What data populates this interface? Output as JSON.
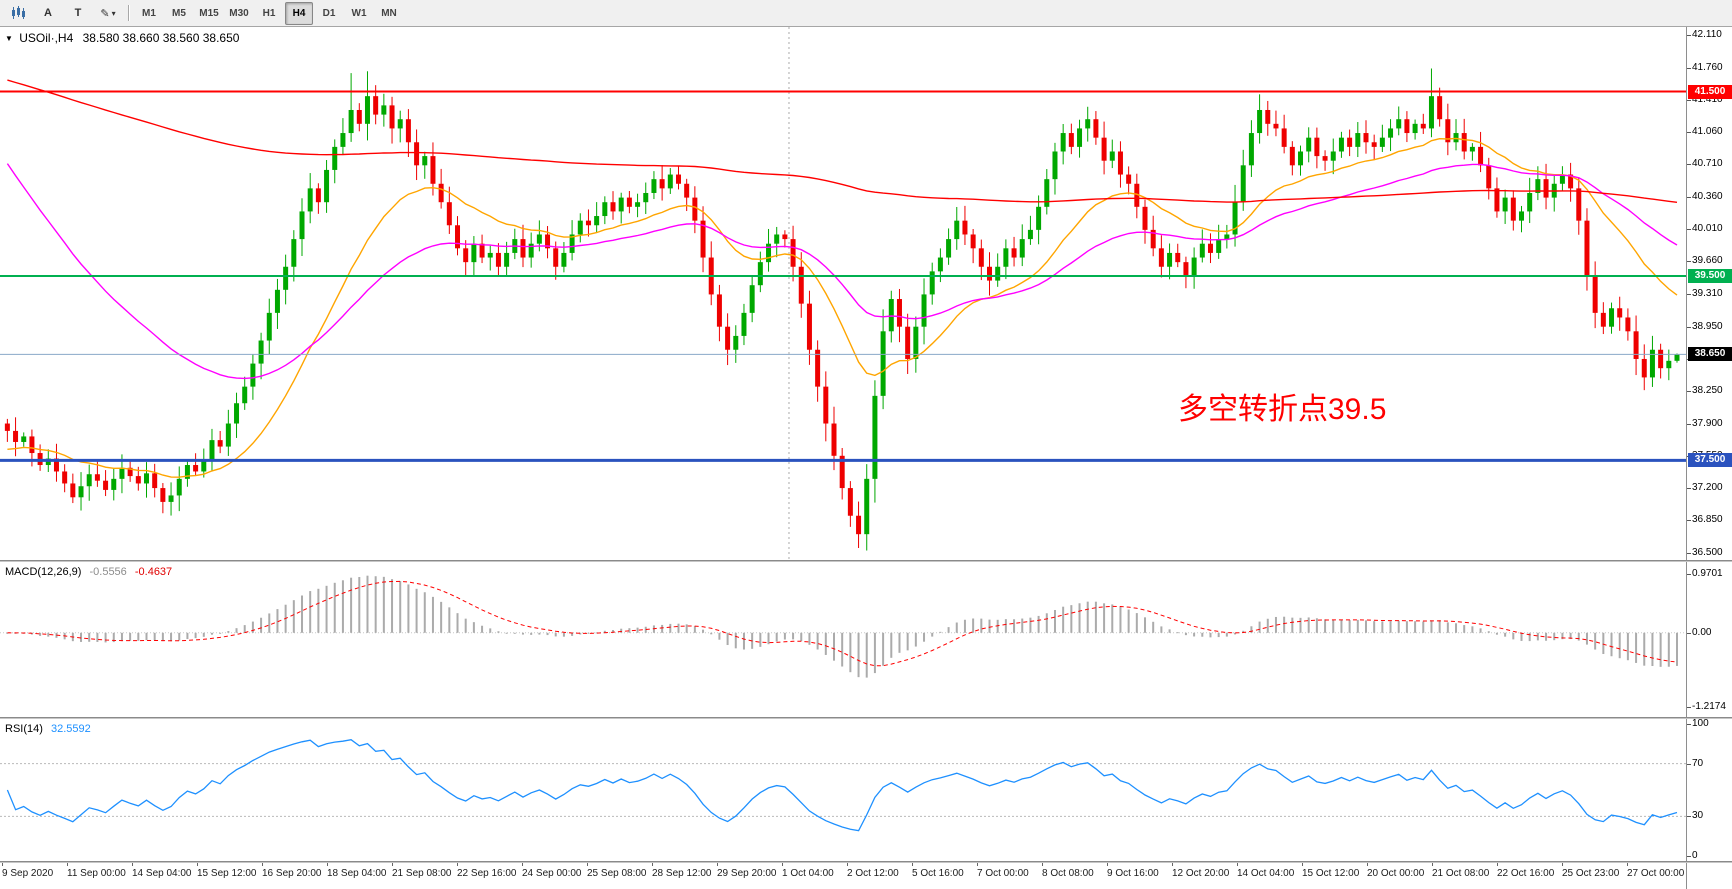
{
  "toolbar": {
    "cursor_label": "A",
    "text_label": "T",
    "icons": {
      "chart_menu": "▼",
      "pencil": "✎",
      "caret": "▾"
    },
    "timeframes": [
      {
        "label": "M1",
        "active": false
      },
      {
        "label": "M5",
        "active": false
      },
      {
        "label": "M15",
        "active": false
      },
      {
        "label": "M30",
        "active": false
      },
      {
        "label": "H1",
        "active": false
      },
      {
        "label": "H4",
        "active": true
      },
      {
        "label": "D1",
        "active": false
      },
      {
        "label": "W1",
        "active": false
      },
      {
        "label": "MN",
        "active": false
      }
    ]
  },
  "chart": {
    "title": "USOil·,H4",
    "ohlc_display": "38.580 38.660 38.560 38.650",
    "annotation": "多空转折点39.5",
    "y_ticks": [
      "42.110",
      "41.760",
      "41.410",
      "41.060",
      "40.710",
      "40.360",
      "40.010",
      "39.660",
      "39.310",
      "38.950",
      "38.600",
      "38.250",
      "37.900",
      "37.550",
      "37.200",
      "36.850",
      "36.500"
    ],
    "levels": [
      {
        "label": "41.500",
        "price": 41.5,
        "color": "#FF0000",
        "width": 2
      },
      {
        "label": "39.500",
        "price": 39.5,
        "color": "#00B050",
        "width": 2
      },
      {
        "label": "37.500",
        "price": 37.5,
        "color": "#2A52BE",
        "width": 3
      }
    ],
    "current_price": {
      "label": "38.650",
      "price": 38.65,
      "line_color": "#8AA8C8",
      "tag_bg": "#000000"
    }
  },
  "chart_data": {
    "type": "candlestick",
    "symbol": "USOil",
    "period": "H4",
    "ohlc_current": {
      "open": "38.580",
      "high": "38.660",
      "low": "38.560",
      "close": "38.650"
    },
    "ylim": [
      36.42,
      42.2
    ],
    "colors": {
      "up": "#00A800",
      "down": "#EE0000"
    },
    "first_open": 37.9,
    "separator_bar": 96,
    "closes": [
      37.82,
      37.7,
      37.76,
      37.58,
      37.45,
      37.52,
      37.38,
      37.25,
      37.1,
      37.22,
      37.35,
      37.28,
      37.18,
      37.3,
      37.42,
      37.33,
      37.25,
      37.36,
      37.2,
      37.05,
      37.12,
      37.3,
      37.45,
      37.38,
      37.5,
      37.72,
      37.65,
      37.9,
      38.12,
      38.3,
      38.55,
      38.8,
      39.1,
      39.35,
      39.6,
      39.9,
      40.2,
      40.45,
      40.3,
      40.65,
      40.9,
      41.05,
      41.3,
      41.15,
      41.45,
      41.25,
      41.35,
      41.1,
      41.2,
      40.95,
      40.7,
      40.8,
      40.5,
      40.3,
      40.05,
      39.8,
      39.65,
      39.85,
      39.7,
      39.75,
      39.6,
      39.75,
      39.9,
      39.7,
      39.85,
      39.95,
      39.8,
      39.6,
      39.75,
      39.95,
      40.1,
      40.05,
      40.15,
      40.3,
      40.2,
      40.35,
      40.25,
      40.3,
      40.4,
      40.55,
      40.45,
      40.6,
      40.5,
      40.35,
      40.1,
      39.7,
      39.3,
      38.95,
      38.7,
      38.85,
      39.1,
      39.4,
      39.65,
      39.85,
      39.95,
      39.9,
      39.6,
      39.2,
      38.7,
      38.3,
      37.9,
      37.55,
      37.2,
      36.9,
      36.7,
      37.3,
      38.2,
      38.9,
      39.25,
      38.95,
      38.6,
      38.95,
      39.3,
      39.55,
      39.7,
      39.9,
      40.1,
      39.95,
      39.8,
      39.6,
      39.45,
      39.6,
      39.8,
      39.7,
      39.9,
      40.0,
      40.25,
      40.55,
      40.85,
      41.05,
      40.9,
      41.1,
      41.2,
      41.0,
      40.75,
      40.85,
      40.6,
      40.5,
      40.25,
      40.0,
      39.8,
      39.6,
      39.75,
      39.65,
      39.5,
      39.7,
      39.85,
      39.75,
      39.9,
      39.95,
      40.3,
      40.7,
      41.05,
      41.3,
      41.15,
      41.1,
      40.9,
      40.7,
      40.85,
      41.0,
      40.8,
      40.75,
      40.85,
      41.0,
      40.9,
      41.05,
      40.95,
      40.9,
      41.0,
      41.1,
      41.2,
      41.05,
      41.15,
      41.1,
      41.45,
      41.2,
      40.95,
      41.05,
      40.85,
      40.9,
      40.7,
      40.45,
      40.2,
      40.35,
      40.1,
      40.2,
      40.4,
      40.55,
      40.35,
      40.5,
      40.6,
      40.45,
      40.1,
      39.5,
      39.1,
      38.95,
      39.15,
      39.05,
      38.9,
      38.6,
      38.4,
      38.7,
      38.5,
      38.58,
      38.65
    ],
    "overrides": {
      "21": {
        "low": 36.95
      },
      "42": {
        "high": 41.7
      },
      "44": {
        "high": 41.72
      },
      "104": {
        "low": 36.55
      },
      "153": {
        "high": 41.47
      },
      "174": {
        "high": 41.75
      },
      "204": {
        "open": 38.58,
        "high": 38.66,
        "low": 38.56
      }
    },
    "ma_lines": [
      {
        "name": "fast",
        "period": 20,
        "seed": 37.6,
        "color": "#FFA500"
      },
      {
        "name": "medium",
        "period": 45,
        "seed": 40.85,
        "color": "#FF00FF"
      },
      {
        "name": "slow",
        "period": 300,
        "seed": 41.65,
        "color": "#FF0000"
      }
    ]
  },
  "macd": {
    "label": "MACD(12,26,9)",
    "value_main": "-0.5556",
    "value_signal": "-0.4637",
    "axis_labels": [
      "0.9701",
      "0.00",
      "-1.2174"
    ],
    "fast": 12,
    "slow": 26,
    "signal": 9,
    "histogram_color": "#ABABAB",
    "signal_color": "#FF0000",
    "scale": [
      -1.3,
      1.08
    ]
  },
  "rsi": {
    "label": "RSI(14)",
    "value": "32.5592",
    "axis_labels": [
      "100",
      "70",
      "30",
      "0"
    ],
    "period": 14,
    "levels": [
      70,
      30
    ],
    "line_color": "#1E90FF"
  },
  "time_axis": {
    "labels": [
      "9 Sep 2020",
      "11 Sep 00:00",
      "14 Sep 04:00",
      "15 Sep 12:00",
      "16 Sep 20:00",
      "18 Sep 04:00",
      "21 Sep 08:00",
      "22 Sep 16:00",
      "24 Sep 00:00",
      "25 Sep 08:00",
      "28 Sep 12:00",
      "29 Sep 20:00",
      "1 Oct 04:00",
      "2 Oct 12:00",
      "5 Oct 16:00",
      "7 Oct 00:00",
      "8 Oct 08:00",
      "9 Oct 16:00",
      "12 Oct 20:00",
      "14 Oct 04:00",
      "15 Oct 12:00",
      "20 Oct 00:00",
      "21 Oct 08:00",
      "22 Oct 16:00",
      "25 Oct 23:00",
      "27 Oct 00:00"
    ]
  }
}
